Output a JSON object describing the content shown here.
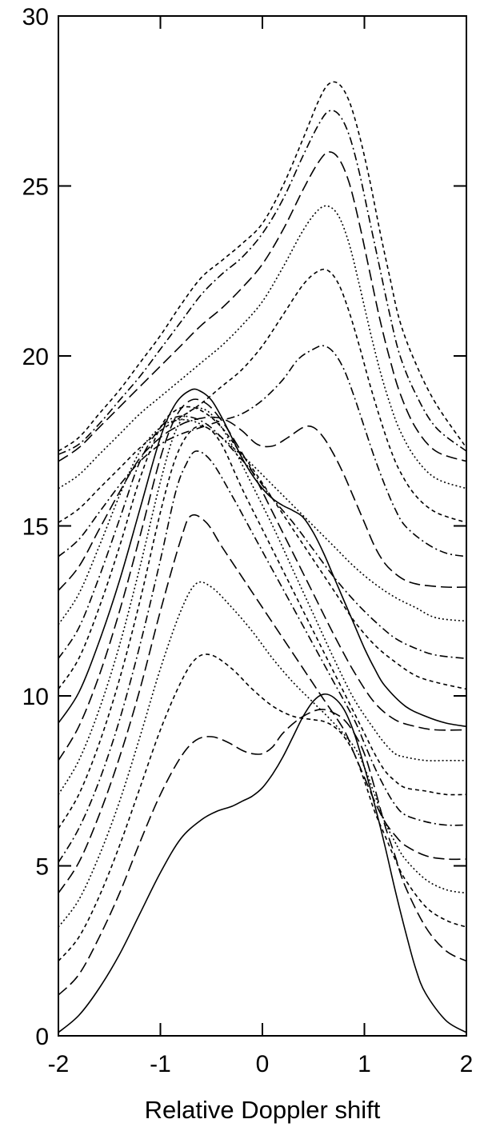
{
  "chart_data": {
    "type": "line",
    "title": "",
    "xlabel": "Relative Doppler shift",
    "ylabel": "",
    "xlim": [
      -2,
      2
    ],
    "ylim": [
      0,
      30
    ],
    "xticks": [
      -2,
      -1,
      0,
      1,
      2
    ],
    "xtick_labels": [
      "-2",
      "-1",
      "0",
      "1",
      "2"
    ],
    "yticks": [
      0,
      5,
      10,
      15,
      20,
      25,
      30
    ],
    "ytick_labels": [
      "0",
      "5",
      "10",
      "15",
      "20",
      "25",
      "30"
    ],
    "grid": false,
    "legend": "none",
    "series": [
      {
        "style": "solid",
        "x": [
          -2,
          -1.8,
          -1.6,
          -1.4,
          -1.2,
          -1,
          -0.8,
          -0.6,
          -0.45,
          -0.3,
          -0.2,
          -0.1,
          0,
          0.1,
          0.2,
          0.3,
          0.4,
          0.5,
          0.6,
          0.7,
          0.8,
          0.9,
          1,
          1.1,
          1.2,
          1.3,
          1.4,
          1.5,
          1.6,
          1.8,
          2
        ],
        "y": [
          0.1,
          0.6,
          1.4,
          2.4,
          3.6,
          4.8,
          5.8,
          6.35,
          6.6,
          6.75,
          6.9,
          7.05,
          7.3,
          7.7,
          8.2,
          8.8,
          9.4,
          9.85,
          10.05,
          9.95,
          9.6,
          8.9,
          7.9,
          6.8,
          5.6,
          4.3,
          3.1,
          2,
          1.25,
          0.45,
          0.1
        ]
      },
      {
        "style": "long-dash",
        "x": [
          -2,
          -1.8,
          -1.6,
          -1.4,
          -1.2,
          -1,
          -0.8,
          -0.65,
          -0.5,
          -0.35,
          -0.2,
          -0.1,
          0,
          0.1,
          0.2,
          0.35,
          0.5,
          0.6,
          0.7,
          0.8,
          0.9,
          1,
          1.1,
          1.2,
          1.3,
          1.4,
          1.6,
          1.8,
          2
        ],
        "y": [
          1.2,
          1.8,
          2.9,
          4.2,
          5.7,
          7.1,
          8.2,
          8.7,
          8.8,
          8.65,
          8.4,
          8.3,
          8.3,
          8.5,
          8.9,
          9.3,
          9.55,
          9.6,
          9.5,
          9.3,
          8.9,
          8.3,
          7.3,
          6.2,
          5.3,
          4.4,
          3.2,
          2.5,
          2.2
        ]
      },
      {
        "style": "dashed",
        "x": [
          -2,
          -1.8,
          -1.6,
          -1.4,
          -1.2,
          -1,
          -0.8,
          -0.65,
          -0.5,
          -0.3,
          -0.1,
          0.1,
          0.3,
          0.5,
          0.6,
          0.7,
          0.8,
          0.9,
          1,
          1.1,
          1.2,
          1.3,
          1.4,
          1.6,
          1.8,
          2
        ],
        "y": [
          2.2,
          2.9,
          4.1,
          5.6,
          7.3,
          9,
          10.4,
          11.1,
          11.2,
          10.8,
          10.2,
          9.7,
          9.4,
          9.3,
          9.25,
          9.1,
          8.8,
          8.3,
          7.5,
          6.6,
          5.9,
          5.2,
          4.6,
          3.8,
          3.4,
          3.2
        ]
      },
      {
        "style": "dotted",
        "x": [
          -2,
          -1.8,
          -1.6,
          -1.4,
          -1.2,
          -1,
          -0.8,
          -0.65,
          -0.5,
          -0.3,
          -0.1,
          0.1,
          0.3,
          0.5,
          0.7,
          0.9,
          1,
          1.1,
          1.2,
          1.3,
          1.4,
          1.6,
          1.8,
          2
        ],
        "y": [
          3.2,
          4,
          5.3,
          6.9,
          8.8,
          10.8,
          12.5,
          13.3,
          13.2,
          12.6,
          11.9,
          11.1,
          10.4,
          9.8,
          9.2,
          8.5,
          7.9,
          7.1,
          6.3,
          5.7,
          5.2,
          4.6,
          4.3,
          4.2
        ]
      },
      {
        "style": "long-dash",
        "x": [
          -2,
          -1.8,
          -1.6,
          -1.4,
          -1.2,
          -1,
          -0.8,
          -0.7,
          -0.55,
          -0.4,
          -0.2,
          0,
          0.2,
          0.4,
          0.6,
          0.8,
          0.9,
          1,
          1.1,
          1.2,
          1.3,
          1.4,
          1.6,
          1.8,
          2
        ],
        "y": [
          4.2,
          5.1,
          6.5,
          8.2,
          10.2,
          12.5,
          14.6,
          15.3,
          15.1,
          14.4,
          13.5,
          12.6,
          11.7,
          10.8,
          9.9,
          9,
          8.3,
          7.6,
          6.9,
          6.3,
          5.9,
          5.6,
          5.3,
          5.2,
          5.2
        ]
      },
      {
        "style": "dash-dot",
        "x": [
          -2,
          -1.8,
          -1.6,
          -1.4,
          -1.2,
          -1,
          -0.85,
          -0.75,
          -0.65,
          -0.5,
          -0.3,
          -0.1,
          0.1,
          0.3,
          0.5,
          0.7,
          0.9,
          1,
          1.1,
          1.2,
          1.3,
          1.4,
          1.6,
          1.8,
          2
        ],
        "y": [
          5.1,
          6.1,
          7.5,
          9.3,
          11.5,
          14,
          16,
          16.8,
          17.2,
          16.9,
          15.9,
          14.8,
          13.7,
          12.6,
          11.5,
          10.4,
          9.3,
          8.6,
          7.9,
          7.3,
          6.8,
          6.5,
          6.3,
          6.2,
          6.2
        ]
      },
      {
        "style": "dashed",
        "x": [
          -2,
          -1.8,
          -1.6,
          -1.4,
          -1.2,
          -1,
          -0.85,
          -0.7,
          -0.55,
          -0.4,
          -0.2,
          0,
          0.2,
          0.4,
          0.6,
          0.8,
          1,
          1.1,
          1.2,
          1.3,
          1.4,
          1.6,
          1.8,
          2
        ],
        "y": [
          6.1,
          7.1,
          8.6,
          10.5,
          12.8,
          15.4,
          17,
          17.8,
          17.9,
          17.4,
          16.1,
          14.9,
          13.7,
          12.5,
          11.3,
          10.1,
          8.9,
          8.3,
          7.8,
          7.5,
          7.3,
          7.2,
          7.1,
          7.1
        ]
      },
      {
        "style": "dotted",
        "x": [
          -2,
          -1.8,
          -1.6,
          -1.4,
          -1.2,
          -1,
          -0.85,
          -0.7,
          -0.55,
          -0.4,
          -0.25,
          -0.1,
          0.1,
          0.3,
          0.5,
          0.7,
          0.9,
          1.1,
          1.2,
          1.3,
          1.4,
          1.6,
          1.8,
          2
        ],
        "y": [
          7.1,
          8.1,
          9.6,
          11.5,
          13.8,
          16.3,
          17.8,
          18.4,
          18.4,
          17.9,
          17.1,
          16.2,
          15,
          13.7,
          12.4,
          11.1,
          9.9,
          9,
          8.6,
          8.3,
          8.2,
          8.1,
          8.1,
          8.1
        ]
      },
      {
        "style": "long-dash",
        "x": [
          -2,
          -1.8,
          -1.6,
          -1.4,
          -1.2,
          -1,
          -0.85,
          -0.7,
          -0.55,
          -0.4,
          -0.25,
          -0.1,
          0.1,
          0.3,
          0.5,
          0.7,
          0.9,
          1.1,
          1.3,
          1.5,
          1.7,
          2
        ],
        "y": [
          8.1,
          9.1,
          10.6,
          12.5,
          14.7,
          17,
          18.2,
          18.7,
          18.6,
          18.1,
          17.4,
          16.6,
          15.4,
          14.2,
          13,
          11.8,
          10.7,
          9.8,
          9.3,
          9.1,
          9,
          9
        ]
      },
      {
        "style": "solid",
        "x": [
          -2,
          -1.8,
          -1.6,
          -1.4,
          -1.2,
          -1,
          -0.85,
          -0.7,
          -0.6,
          -0.5,
          -0.4,
          -0.3,
          -0.2,
          -0.1,
          0,
          0.1,
          0.2,
          0.3,
          0.4,
          0.5,
          0.6,
          0.7,
          0.8,
          0.9,
          1,
          1.1,
          1.2,
          1.4,
          1.6,
          1.8,
          2
        ],
        "y": [
          9.2,
          10.1,
          11.6,
          13.4,
          15.5,
          17.6,
          18.6,
          19,
          18.95,
          18.7,
          18.2,
          17.6,
          17,
          16.5,
          16.1,
          15.8,
          15.6,
          15.45,
          15.25,
          14.8,
          14.2,
          13.5,
          12.8,
          12.1,
          11.4,
          10.8,
          10.3,
          9.7,
          9.4,
          9.2,
          9.1
        ]
      },
      {
        "style": "dashed",
        "x": [
          -2,
          -1.8,
          -1.6,
          -1.4,
          -1.2,
          -1,
          -0.85,
          -0.7,
          -0.55,
          -0.4,
          -0.25,
          -0.1,
          0.1,
          0.3,
          0.5,
          0.7,
          0.9,
          1.1,
          1.3,
          1.5,
          1.7,
          2
        ],
        "y": [
          10.2,
          11.1,
          12.6,
          14.4,
          16.4,
          17.9,
          18.4,
          18.5,
          18.3,
          17.9,
          17.3,
          16.7,
          15.8,
          14.9,
          14,
          13.1,
          12.2,
          11.5,
          11,
          10.6,
          10.4,
          10.2
        ]
      },
      {
        "style": "dash-dot",
        "x": [
          -2,
          -1.8,
          -1.6,
          -1.4,
          -1.2,
          -1,
          -0.85,
          -0.7,
          -0.55,
          -0.4,
          -0.25,
          -0.1,
          0.1,
          0.3,
          0.5,
          0.7,
          0.9,
          1.1,
          1.3,
          1.5,
          1.7,
          2
        ],
        "y": [
          11.1,
          12,
          13.5,
          15.2,
          16.9,
          17.9,
          18.2,
          18.2,
          18,
          17.6,
          17.1,
          16.6,
          15.8,
          15.1,
          14.3,
          13.5,
          12.8,
          12.2,
          11.7,
          11.4,
          11.2,
          11.1
        ]
      },
      {
        "style": "dotted",
        "x": [
          -2,
          -1.8,
          -1.6,
          -1.4,
          -1.2,
          -1,
          -0.85,
          -0.7,
          -0.55,
          -0.4,
          -0.25,
          -0.1,
          0.1,
          0.3,
          0.5,
          0.7,
          0.9,
          1.1,
          1.3,
          1.5,
          1.7,
          2
        ],
        "y": [
          12.1,
          13,
          14.4,
          15.9,
          17.2,
          17.9,
          18.1,
          18.1,
          17.9,
          17.6,
          17.2,
          16.8,
          16.2,
          15.6,
          15,
          14.4,
          13.8,
          13.3,
          12.9,
          12.6,
          12.3,
          12.2
        ]
      },
      {
        "style": "long-dash",
        "x": [
          -2,
          -1.8,
          -1.6,
          -1.4,
          -1.2,
          -1,
          -0.85,
          -0.7,
          -0.5,
          -0.35,
          -0.2,
          -0.05,
          0.1,
          0.25,
          0.4,
          0.5,
          0.6,
          0.7,
          0.8,
          0.9,
          1,
          1.1,
          1.2,
          1.3,
          1.4,
          1.5,
          1.6,
          1.8,
          2
        ],
        "y": [
          13.1,
          13.8,
          14.9,
          16,
          17,
          17.6,
          17.9,
          18.1,
          18.2,
          18.1,
          17.8,
          17.4,
          17.35,
          17.6,
          17.9,
          17.9,
          17.6,
          17.1,
          16.5,
          15.8,
          15.1,
          14.4,
          13.9,
          13.6,
          13.4,
          13.3,
          13.25,
          13.2,
          13.2
        ]
      },
      {
        "style": "dash-dot",
        "x": [
          -2,
          -1.8,
          -1.6,
          -1.4,
          -1.2,
          -1,
          -0.8,
          -0.6,
          -0.4,
          -0.2,
          0,
          0.2,
          0.35,
          0.5,
          0.6,
          0.7,
          0.8,
          0.9,
          1,
          1.1,
          1.2,
          1.3,
          1.4,
          1.6,
          1.8,
          2
        ],
        "y": [
          14.1,
          14.6,
          15.4,
          16.2,
          16.9,
          17.4,
          17.7,
          17.9,
          18.1,
          18.3,
          18.7,
          19.3,
          19.9,
          20.2,
          20.3,
          20.1,
          19.6,
          18.8,
          17.9,
          17,
          16.2,
          15.5,
          15,
          14.5,
          14.2,
          14.1
        ]
      },
      {
        "style": "dashed",
        "x": [
          -2,
          -1.8,
          -1.6,
          -1.4,
          -1.2,
          -1,
          -0.8,
          -0.6,
          -0.4,
          -0.2,
          0,
          0.2,
          0.4,
          0.55,
          0.65,
          0.75,
          0.85,
          0.95,
          1.05,
          1.15,
          1.25,
          1.35,
          1.5,
          1.7,
          2
        ],
        "y": [
          15.1,
          15.5,
          16.1,
          16.7,
          17.3,
          17.8,
          18.2,
          18.6,
          19.1,
          19.6,
          20.3,
          21.2,
          22.1,
          22.5,
          22.5,
          22.1,
          21.3,
          20.3,
          19.2,
          18.2,
          17.3,
          16.6,
          15.9,
          15.4,
          15.1
        ]
      },
      {
        "style": "dotted",
        "x": [
          -2,
          -1.8,
          -1.6,
          -1.4,
          -1.2,
          -1,
          -0.8,
          -0.6,
          -0.4,
          -0.2,
          0,
          0.2,
          0.4,
          0.55,
          0.65,
          0.75,
          0.85,
          0.95,
          1.05,
          1.15,
          1.25,
          1.35,
          1.5,
          1.7,
          2
        ],
        "y": [
          16.1,
          16.5,
          17.1,
          17.7,
          18.3,
          18.8,
          19.3,
          19.8,
          20.3,
          20.9,
          21.6,
          22.6,
          23.7,
          24.3,
          24.4,
          24.1,
          23.3,
          22.1,
          20.8,
          19.6,
          18.6,
          17.8,
          17,
          16.4,
          16.1
        ]
      },
      {
        "style": "long-dash",
        "x": [
          -2,
          -1.8,
          -1.6,
          -1.4,
          -1.2,
          -1,
          -0.8,
          -0.6,
          -0.4,
          -0.2,
          0,
          0.2,
          0.4,
          0.55,
          0.65,
          0.75,
          0.85,
          0.95,
          1.05,
          1.15,
          1.25,
          1.35,
          1.5,
          1.7,
          2
        ],
        "y": [
          16.9,
          17.3,
          17.9,
          18.5,
          19.1,
          19.7,
          20.3,
          20.9,
          21.4,
          22,
          22.7,
          23.7,
          24.9,
          25.7,
          26,
          25.8,
          25.1,
          23.9,
          22.5,
          21.1,
          19.9,
          18.9,
          17.9,
          17.2,
          16.9
        ]
      },
      {
        "style": "dash-dot",
        "x": [
          -2,
          -1.8,
          -1.6,
          -1.4,
          -1.2,
          -1,
          -0.8,
          -0.6,
          -0.4,
          -0.2,
          0,
          0.2,
          0.4,
          0.55,
          0.65,
          0.75,
          0.85,
          0.95,
          1.05,
          1.15,
          1.25,
          1.35,
          1.5,
          1.7,
          2
        ],
        "y": [
          17.1,
          17.4,
          18,
          18.7,
          19.4,
          20.2,
          21,
          21.8,
          22.4,
          22.9,
          23.6,
          24.6,
          25.9,
          26.8,
          27.2,
          27.1,
          26.5,
          25.4,
          24,
          22.6,
          21.2,
          20,
          18.9,
          17.9,
          17.2
        ]
      },
      {
        "style": "dashed",
        "x": [
          -2,
          -1.8,
          -1.6,
          -1.4,
          -1.2,
          -1,
          -0.8,
          -0.6,
          -0.4,
          -0.2,
          0,
          0.2,
          0.4,
          0.55,
          0.65,
          0.75,
          0.85,
          0.95,
          1.05,
          1.15,
          1.25,
          1.35,
          1.5,
          1.7,
          2
        ],
        "y": [
          17.2,
          17.6,
          18.3,
          19,
          19.8,
          20.6,
          21.5,
          22.3,
          22.8,
          23.3,
          23.9,
          25,
          26.4,
          27.5,
          28,
          28,
          27.5,
          26.5,
          25.2,
          23.7,
          22.3,
          21,
          19.8,
          18.6,
          17.3
        ]
      }
    ]
  }
}
